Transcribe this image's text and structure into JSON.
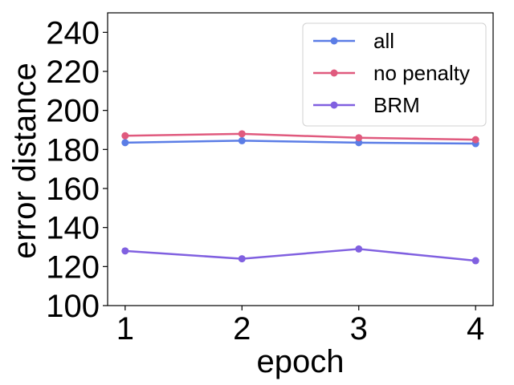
{
  "chart_data": {
    "type": "line",
    "title": "",
    "xlabel": "epoch",
    "ylabel": "error distance",
    "x": [
      1,
      2,
      3,
      4
    ],
    "xlim": [
      0.85,
      4.15
    ],
    "ylim": [
      100,
      250
    ],
    "xticks": [
      1,
      2,
      3,
      4
    ],
    "yticks": [
      100,
      120,
      140,
      160,
      180,
      200,
      220,
      240
    ],
    "grid": false,
    "legend_position": "top-right",
    "series": [
      {
        "name": "all",
        "color": "#5b7de6",
        "values": [
          183.5,
          184.5,
          183.5,
          183
        ]
      },
      {
        "name": "no penalty",
        "color": "#e05a7e",
        "values": [
          187,
          188,
          186,
          185
        ]
      },
      {
        "name": "BRM",
        "color": "#8060e0",
        "values": [
          128,
          124,
          129,
          123
        ]
      }
    ]
  }
}
